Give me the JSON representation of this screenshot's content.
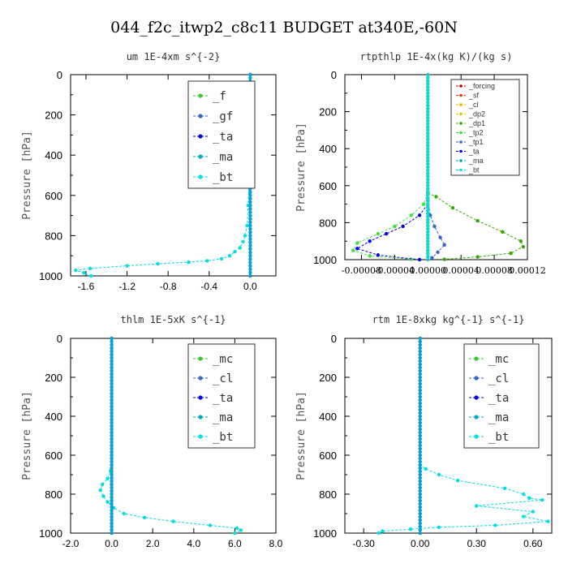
{
  "title": "044_f2c_itwp2_c8c11  BUDGET at340E,-60N",
  "chart_data": [
    {
      "type": "line",
      "title": "um   1E-4xm s^{-2}",
      "ylabel": "Pressure [hPa]",
      "xlim": [
        -1.75,
        0.25
      ],
      "ylim": [
        1000,
        0
      ],
      "xticks": [
        -1.6,
        -1.2,
        -0.8,
        -0.4,
        0.0
      ],
      "xtick_labels": [
        "-1.6",
        "-1.2",
        "-0.8",
        "-0.4",
        "0.0"
      ],
      "yticks": [
        0,
        200,
        400,
        600,
        800,
        1000
      ],
      "ytick_labels": [
        "0",
        "200",
        "400",
        "600",
        "800",
        "1000"
      ],
      "legend": "top-right",
      "series": [
        {
          "name": "_f",
          "color": "#33cc33",
          "values": [
            [
              0,
              0
            ],
            [
              0,
              1000
            ]
          ]
        },
        {
          "name": "_gf",
          "color": "#3366cc",
          "values": [
            [
              0,
              0
            ],
            [
              0,
              1000
            ]
          ]
        },
        {
          "name": "_ta",
          "color": "#0000ee",
          "values": [
            [
              0,
              0
            ],
            [
              0,
              1000
            ]
          ]
        },
        {
          "name": "_ma",
          "color": "#00aacc",
          "values": [
            [
              0,
              0
            ],
            [
              0,
              1000
            ]
          ]
        },
        {
          "name": "_bt",
          "color": "#00e0e0",
          "values": [
            [
              0,
              0
            ],
            [
              -0.01,
              500
            ],
            [
              -0.02,
              650
            ],
            [
              -0.03,
              750
            ],
            [
              -0.05,
              800
            ],
            [
              -0.07,
              830
            ],
            [
              -0.1,
              860
            ],
            [
              -0.15,
              880
            ],
            [
              -0.2,
              900
            ],
            [
              -0.28,
              915
            ],
            [
              -0.42,
              925
            ],
            [
              -0.6,
              932
            ],
            [
              -0.9,
              940
            ],
            [
              -1.2,
              950
            ],
            [
              -1.56,
              963
            ],
            [
              -1.7,
              972
            ],
            [
              -1.62,
              985
            ],
            [
              -1.55,
              1000
            ]
          ]
        }
      ]
    },
    {
      "type": "line",
      "title": "rtpthlp  1E-4x(kg K)/(kg s)",
      "ylabel": "Pressure [hPa]",
      "xlim": [
        -0.0001,
        0.00012
      ],
      "ylim": [
        1000,
        0
      ],
      "xticks": [
        -8e-05,
        -4e-05,
        0.0,
        4e-05,
        8e-05,
        0.00012
      ],
      "xtick_labels": [
        "-0.00008",
        "-0.00004",
        "0.00000",
        "0.00004",
        "0.00008",
        "0.00012"
      ],
      "yticks": [
        0,
        200,
        400,
        600,
        800,
        1000
      ],
      "ytick_labels": [
        "0",
        "200",
        "400",
        "600",
        "800",
        "1000"
      ],
      "legend": "top-right",
      "series": [
        {
          "name": "_forcing",
          "color": "#cc0000",
          "values": [
            [
              0,
              0
            ],
            [
              0,
              1000
            ]
          ]
        },
        {
          "name": "_sf",
          "color": "#ff3300",
          "values": [
            [
              0,
              0
            ],
            [
              0,
              1000
            ]
          ]
        },
        {
          "name": "_cl",
          "color": "#ffaa00",
          "values": [
            [
              0,
              0
            ],
            [
              0,
              1000
            ]
          ]
        },
        {
          "name": "_dp2",
          "color": "#ddcc00",
          "values": [
            [
              0,
              0
            ],
            [
              0,
              1000
            ]
          ]
        },
        {
          "name": "_dp1",
          "color": "#33aa00",
          "values": [
            [
              0,
              640
            ],
            [
              1e-05,
              660
            ],
            [
              3e-05,
              720
            ],
            [
              6e-05,
              790
            ],
            [
              9e-05,
              850
            ],
            [
              0.000112,
              900
            ],
            [
              0.000115,
              930
            ],
            [
              0.0001,
              965
            ],
            [
              6e-05,
              985
            ],
            [
              2e-05,
              998
            ]
          ]
        },
        {
          "name": "_tp2",
          "color": "#44dd44",
          "values": [
            [
              0,
              640
            ],
            [
              -5e-06,
              700
            ],
            [
              -2e-05,
              760
            ],
            [
              -4e-05,
              820
            ],
            [
              -6e-05,
              860
            ],
            [
              -8.5e-05,
              910
            ],
            [
              -9e-05,
              950
            ],
            [
              -7e-05,
              980
            ],
            [
              -2e-05,
              998
            ]
          ]
        },
        {
          "name": "_tp1",
          "color": "#3366cc",
          "values": [
            [
              0,
              680
            ],
            [
              3e-06,
              760
            ],
            [
              8e-06,
              820
            ],
            [
              1.5e-05,
              880
            ],
            [
              2e-05,
              920
            ],
            [
              1.2e-05,
              960
            ],
            [
              5e-06,
              990
            ]
          ]
        },
        {
          "name": "_ta",
          "color": "#0000ee",
          "values": [
            [
              0,
              700
            ],
            [
              -1e-05,
              760
            ],
            [
              -3e-05,
              820
            ],
            [
              -5e-05,
              860
            ],
            [
              -7e-05,
              900
            ],
            [
              -8.5e-05,
              940
            ],
            [
              -6e-05,
              975
            ],
            [
              -1e-05,
              1000
            ]
          ]
        },
        {
          "name": "_ma",
          "color": "#00aacc",
          "values": [
            [
              0,
              0
            ],
            [
              0,
              1000
            ]
          ]
        },
        {
          "name": "_bt",
          "color": "#00e0e0",
          "values": [
            [
              0,
              0
            ],
            [
              0,
              1000
            ]
          ]
        }
      ]
    },
    {
      "type": "line",
      "title": "thlm   1E-5xK s^{-1}",
      "ylabel": "Pressure [hPa]",
      "xlim": [
        -2.0,
        8.0
      ],
      "ylim": [
        1000,
        0
      ],
      "xticks": [
        -2.0,
        0.0,
        2.0,
        4.0,
        6.0,
        8.0
      ],
      "xtick_labels": [
        "-2.0",
        "0.0",
        "2.0",
        "4.0",
        "6.0",
        "8.0"
      ],
      "yticks": [
        0,
        200,
        400,
        600,
        800,
        1000
      ],
      "ytick_labels": [
        "0",
        "200",
        "400",
        "600",
        "800",
        "1000"
      ],
      "legend": "top-right",
      "series": [
        {
          "name": "_mc",
          "color": "#33cc33",
          "values": [
            [
              0,
              0
            ],
            [
              0,
              1000
            ]
          ]
        },
        {
          "name": "_cl",
          "color": "#3366cc",
          "values": [
            [
              0,
              0
            ],
            [
              0,
              1000
            ]
          ]
        },
        {
          "name": "_ta",
          "color": "#0000ee",
          "values": [
            [
              0,
              0
            ],
            [
              0,
              1000
            ]
          ]
        },
        {
          "name": "_ma",
          "color": "#00aacc",
          "values": [
            [
              0,
              0
            ],
            [
              0,
              1000
            ]
          ]
        },
        {
          "name": "_bt",
          "color": "#00e0e0",
          "values": [
            [
              0,
              0
            ],
            [
              0,
              600
            ],
            [
              -0.05,
              680
            ],
            [
              -0.2,
              720
            ],
            [
              -0.45,
              750
            ],
            [
              -0.55,
              780
            ],
            [
              -0.4,
              810
            ],
            [
              -0.2,
              840
            ],
            [
              0.1,
              870
            ],
            [
              0.6,
              900
            ],
            [
              1.6,
              920
            ],
            [
              3.0,
              940
            ],
            [
              4.8,
              960
            ],
            [
              6.1,
              975
            ],
            [
              6.3,
              985
            ],
            [
              6.0,
              1000
            ]
          ]
        }
      ]
    },
    {
      "type": "line",
      "title": "rtm  1E-8xkg kg^{-1} s^{-1}",
      "ylabel": "Pressure [hPa]",
      "xlim": [
        -0.4,
        0.7
      ],
      "ylim": [
        1000,
        0
      ],
      "xticks": [
        -0.3,
        0.0,
        0.3,
        0.6
      ],
      "xtick_labels": [
        "-0.30",
        "0.00",
        "0.30",
        "0.60"
      ],
      "yticks": [
        0,
        200,
        400,
        600,
        800,
        1000
      ],
      "ytick_labels": [
        "0",
        "200",
        "400",
        "600",
        "800",
        "1000"
      ],
      "legend": "top-right",
      "series": [
        {
          "name": "_mc",
          "color": "#33cc33",
          "values": [
            [
              0,
              0
            ],
            [
              0,
              1000
            ]
          ]
        },
        {
          "name": "_cl",
          "color": "#3366cc",
          "values": [
            [
              0,
              0
            ],
            [
              0,
              1000
            ]
          ]
        },
        {
          "name": "_ta",
          "color": "#0000ee",
          "values": [
            [
              0,
              0
            ],
            [
              0,
              1000
            ]
          ]
        },
        {
          "name": "_ma",
          "color": "#00aacc",
          "values": [
            [
              0,
              0
            ],
            [
              0,
              1000
            ]
          ]
        },
        {
          "name": "_bt",
          "color": "#00e0e0",
          "values": [
            [
              0,
              0
            ],
            [
              0,
              650
            ],
            [
              0.03,
              670
            ],
            [
              0.1,
              700
            ],
            [
              0.2,
              730
            ],
            [
              0.45,
              770
            ],
            [
              0.55,
              800
            ],
            [
              0.58,
              820
            ],
            [
              0.65,
              830
            ],
            [
              0.3,
              860
            ],
            [
              0.6,
              890
            ],
            [
              0.55,
              915
            ],
            [
              0.68,
              940
            ],
            [
              0.4,
              960
            ],
            [
              0.1,
              970
            ],
            [
              -0.05,
              980
            ],
            [
              -0.2,
              990
            ],
            [
              -0.22,
              1000
            ]
          ]
        }
      ]
    }
  ]
}
